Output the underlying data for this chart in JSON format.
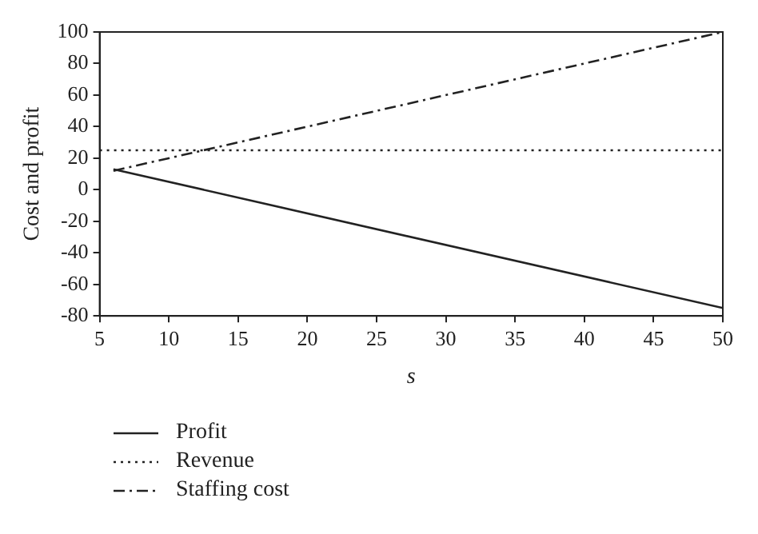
{
  "chart_data": {
    "type": "line",
    "xlabel": "s",
    "ylabel": "Cost and profit",
    "xlim": [
      5,
      50
    ],
    "ylim": [
      -80,
      100
    ],
    "xticks": [
      5,
      10,
      15,
      20,
      25,
      30,
      35,
      40,
      45,
      50
    ],
    "yticks": [
      -80,
      -60,
      -40,
      -20,
      0,
      20,
      40,
      60,
      80,
      100
    ],
    "grid": false,
    "legend": "bottom",
    "marker": "none",
    "series": [
      {
        "name": "Profit",
        "color": "#222222",
        "line_style": "solid",
        "x": [
          6,
          50
        ],
        "values": [
          13,
          -75
        ]
      },
      {
        "name": "Revenue",
        "color": "#222222",
        "line_style": "dotted",
        "x": [
          5,
          50
        ],
        "values": [
          25,
          25
        ]
      },
      {
        "name": "Staffing cost",
        "color": "#222222",
        "line_style": "dashdot",
        "x": [
          6,
          50
        ],
        "values": [
          12,
          100
        ]
      }
    ]
  }
}
